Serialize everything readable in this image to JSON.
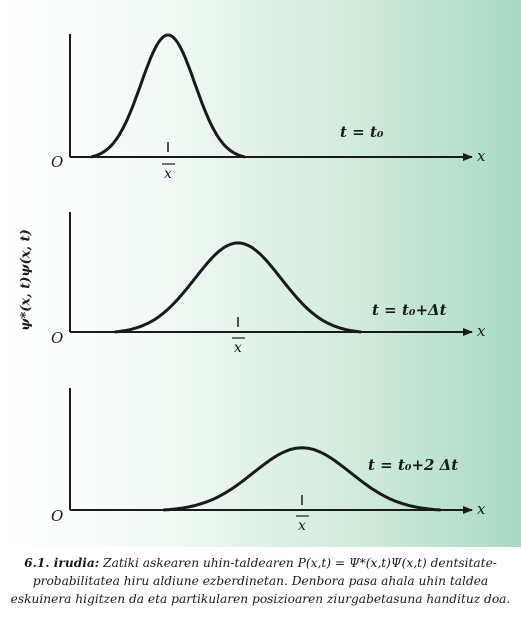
{
  "figure": {
    "y_axis_label": "ψ*(x, t)ψ(x, t)",
    "panels": [
      {
        "origin": "O",
        "axis": "x",
        "mean": "x",
        "time_label": "t = t₀"
      },
      {
        "origin": "O",
        "axis": "x",
        "mean": "x",
        "time_label": "t = t₀+Δt"
      },
      {
        "origin": "O",
        "axis": "x",
        "mean": "x",
        "time_label": "t = t₀+2 Δt"
      }
    ]
  },
  "caption": {
    "number": "6.1. irudia:",
    "text": "Zatiki askearen uhin-taldearen P(x,t) = Ψ*(x,t)Ψ(x,t) dentsitate-probabilitatea hiru aldiune ezberdinetan. Denbora pasa ahala uhin taldea eskuinera higitzen da eta partikularen posizioaren ziurgabetasuna handituz doa."
  },
  "chart_data": {
    "type": "line",
    "title": "",
    "xlabel": "x",
    "ylabel": "ψ*(x, t)ψ(x, t)",
    "series": [
      {
        "name": "t = t₀",
        "shape": "gaussian",
        "center": 0,
        "relative_width": 1.0,
        "relative_height": 1.0
      },
      {
        "name": "t = t₀+Δt",
        "shape": "gaussian",
        "center": 1,
        "relative_width": 1.6,
        "relative_height": 0.73
      },
      {
        "name": "t = t₀+2 Δt",
        "shape": "gaussian",
        "center": 2,
        "relative_width": 1.8,
        "relative_height": 0.51
      }
    ],
    "grid": false,
    "legend": "none"
  }
}
